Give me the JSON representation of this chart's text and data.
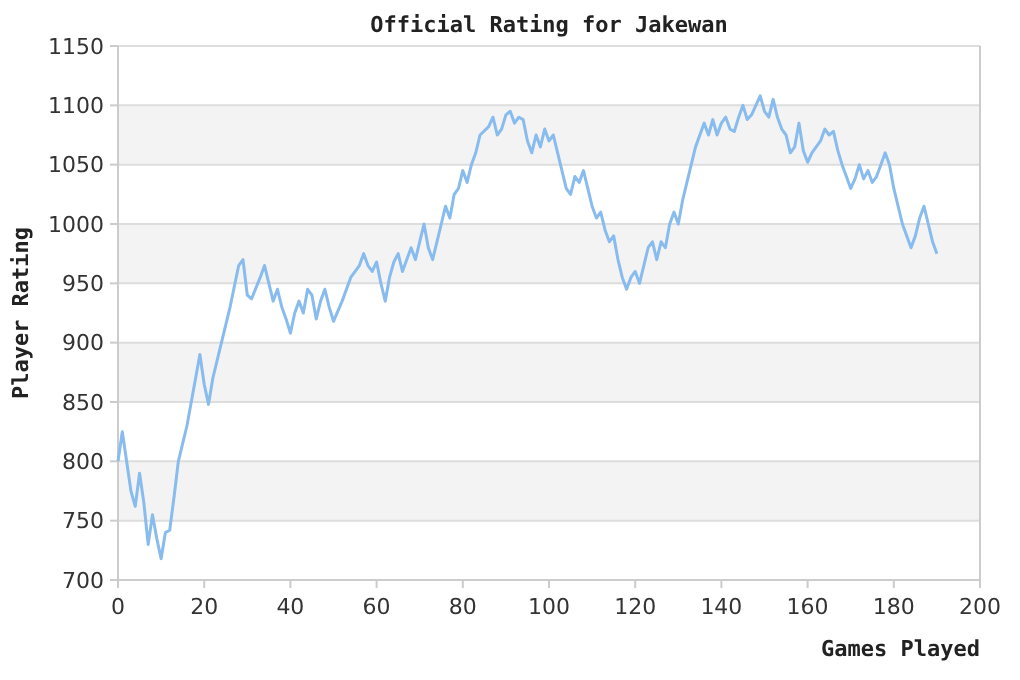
{
  "chart_data": {
    "type": "line",
    "title": "Official Rating for Jakewan",
    "xlabel": "Games Played",
    "ylabel": "Player Rating",
    "xlim": [
      0,
      200
    ],
    "xticks": [
      0,
      20,
      40,
      60,
      80,
      100,
      120,
      140,
      160,
      180,
      200
    ],
    "ylim": [
      700,
      1150
    ],
    "yticks": [
      700,
      750,
      800,
      850,
      900,
      950,
      1000,
      1050,
      1100,
      1150
    ],
    "grid": "y",
    "marker": "none",
    "line_style": "solid",
    "series": [
      {
        "color": "#88bbee",
        "x": [
          0,
          1,
          2,
          3,
          4,
          5,
          6,
          7,
          8,
          9,
          10,
          11,
          12,
          13,
          14,
          16,
          18,
          19,
          20,
          21,
          22,
          24,
          26,
          28,
          29,
          30,
          31,
          33,
          34,
          35,
          36,
          37,
          38,
          39,
          40,
          41,
          42,
          43,
          44,
          45,
          46,
          47,
          48,
          49,
          50,
          52,
          54,
          56,
          57,
          58,
          59,
          60,
          61,
          62,
          63,
          64,
          65,
          66,
          67,
          68,
          69,
          70,
          71,
          72,
          73,
          74,
          75,
          76,
          77,
          78,
          79,
          80,
          81,
          82,
          83,
          84,
          86,
          87,
          88,
          89,
          90,
          91,
          92,
          93,
          94,
          95,
          96,
          97,
          98,
          99,
          100,
          101,
          102,
          103,
          104,
          105,
          106,
          107,
          108,
          109,
          110,
          111,
          112,
          113,
          114,
          115,
          116,
          117,
          118,
          119,
          120,
          121,
          122,
          123,
          124,
          125,
          126,
          127,
          128,
          129,
          130,
          131,
          132,
          133,
          134,
          135,
          136,
          137,
          138,
          139,
          140,
          141,
          142,
          143,
          144,
          145,
          146,
          147,
          148,
          149,
          150,
          151,
          152,
          153,
          154,
          155,
          156,
          157,
          158,
          159,
          160,
          161,
          162,
          163,
          164,
          165,
          166,
          167,
          168,
          169,
          170,
          171,
          172,
          173,
          174,
          175,
          176,
          177,
          178,
          179,
          180,
          181,
          182,
          183,
          184,
          185,
          186,
          187,
          188,
          189,
          190
        ],
        "values": [
          800,
          825,
          800,
          775,
          762,
          790,
          765,
          730,
          755,
          735,
          718,
          740,
          742,
          770,
          800,
          830,
          870,
          890,
          865,
          848,
          870,
          900,
          930,
          965,
          970,
          940,
          937,
          955,
          965,
          950,
          935,
          945,
          930,
          920,
          908,
          925,
          935,
          925,
          945,
          940,
          920,
          935,
          945,
          930,
          918,
          935,
          955,
          965,
          975,
          965,
          960,
          968,
          950,
          935,
          955,
          968,
          975,
          960,
          970,
          980,
          970,
          985,
          1000,
          980,
          970,
          985,
          1000,
          1015,
          1005,
          1025,
          1030,
          1045,
          1035,
          1050,
          1060,
          1075,
          1082,
          1090,
          1075,
          1080,
          1092,
          1095,
          1085,
          1090,
          1088,
          1070,
          1060,
          1075,
          1065,
          1080,
          1070,
          1075,
          1060,
          1045,
          1030,
          1025,
          1040,
          1035,
          1045,
          1030,
          1015,
          1005,
          1010,
          995,
          985,
          990,
          970,
          955,
          945,
          955,
          960,
          950,
          965,
          980,
          985,
          970,
          985,
          980,
          1000,
          1010,
          1000,
          1020,
          1035,
          1050,
          1065,
          1075,
          1085,
          1075,
          1088,
          1075,
          1085,
          1090,
          1080,
          1078,
          1090,
          1100,
          1088,
          1092,
          1100,
          1108,
          1095,
          1090,
          1105,
          1090,
          1080,
          1075,
          1060,
          1065,
          1085,
          1062,
          1052,
          1060,
          1065,
          1070,
          1080,
          1075,
          1078,
          1062,
          1050,
          1040,
          1030,
          1038,
          1050,
          1038,
          1045,
          1035,
          1040,
          1050,
          1060,
          1050,
          1030,
          1015,
          1000,
          990,
          980,
          990,
          1005,
          1015,
          1000,
          985,
          975
        ]
      }
    ]
  }
}
